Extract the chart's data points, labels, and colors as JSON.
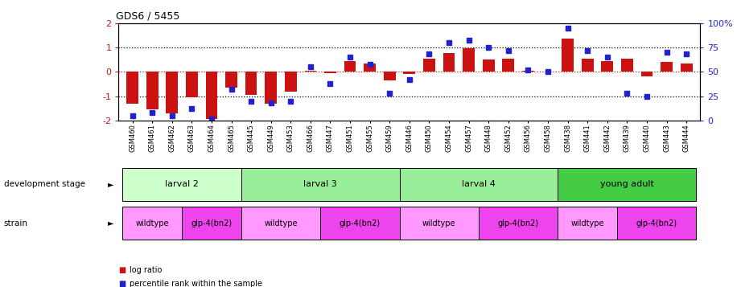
{
  "title": "GDS6 / 5455",
  "samples": [
    "GSM460",
    "GSM461",
    "GSM462",
    "GSM463",
    "GSM464",
    "GSM465",
    "GSM445",
    "GSM449",
    "GSM453",
    "GSM466",
    "GSM447",
    "GSM451",
    "GSM455",
    "GSM459",
    "GSM446",
    "GSM450",
    "GSM454",
    "GSM457",
    "GSM448",
    "GSM452",
    "GSM456",
    "GSM458",
    "GSM438",
    "GSM441",
    "GSM442",
    "GSM439",
    "GSM440",
    "GSM443",
    "GSM444"
  ],
  "log_ratio": [
    -1.3,
    -1.55,
    -1.7,
    -1.05,
    -1.95,
    -0.65,
    -0.95,
    -1.3,
    -0.8,
    0.05,
    -0.05,
    0.45,
    0.35,
    -0.35,
    -0.1,
    0.55,
    0.75,
    0.95,
    0.5,
    0.55,
    0.05,
    0.0,
    1.35,
    0.55,
    0.45,
    0.55,
    -0.2,
    0.4,
    0.35
  ],
  "percentile": [
    5,
    8,
    5,
    12,
    2,
    32,
    20,
    18,
    20,
    55,
    38,
    65,
    58,
    28,
    42,
    68,
    80,
    82,
    75,
    72,
    52,
    50,
    95,
    72,
    65,
    28,
    25,
    70,
    68
  ],
  "dev_stage_groups": [
    {
      "label": "larval 2",
      "start": 0,
      "end": 5
    },
    {
      "label": "larval 3",
      "start": 6,
      "end": 13
    },
    {
      "label": "larval 4",
      "start": 14,
      "end": 21
    },
    {
      "label": "young adult",
      "start": 22,
      "end": 28
    }
  ],
  "dev_stage_colors": [
    "#ccffcc",
    "#99ee99",
    "#99ee99",
    "#44cc44"
  ],
  "strain_groups": [
    {
      "label": "wildtype",
      "start": 0,
      "end": 2
    },
    {
      "label": "glp-4(bn2)",
      "start": 3,
      "end": 5
    },
    {
      "label": "wildtype",
      "start": 6,
      "end": 9
    },
    {
      "label": "glp-4(bn2)",
      "start": 10,
      "end": 13
    },
    {
      "label": "wildtype",
      "start": 14,
      "end": 17
    },
    {
      "label": "glp-4(bn2)",
      "start": 18,
      "end": 21
    },
    {
      "label": "wildtype",
      "start": 22,
      "end": 24
    },
    {
      "label": "glp-4(bn2)",
      "start": 25,
      "end": 28
    }
  ],
  "strain_colors": [
    "#ff99ff",
    "#ee44ee",
    "#ff99ff",
    "#ee44ee",
    "#ff99ff",
    "#ee44ee",
    "#ff99ff",
    "#ee44ee"
  ],
  "bar_color": "#cc1111",
  "dot_color": "#2222cc",
  "ylim": [
    -2,
    2
  ],
  "y2lim": [
    0,
    100
  ],
  "yticks": [
    -2,
    -1,
    0,
    1,
    2
  ],
  "y2ticks": [
    0,
    25,
    50,
    75,
    100
  ],
  "hlines_black": [
    -1,
    1
  ],
  "hline_red": 0,
  "background_color": "#ffffff"
}
